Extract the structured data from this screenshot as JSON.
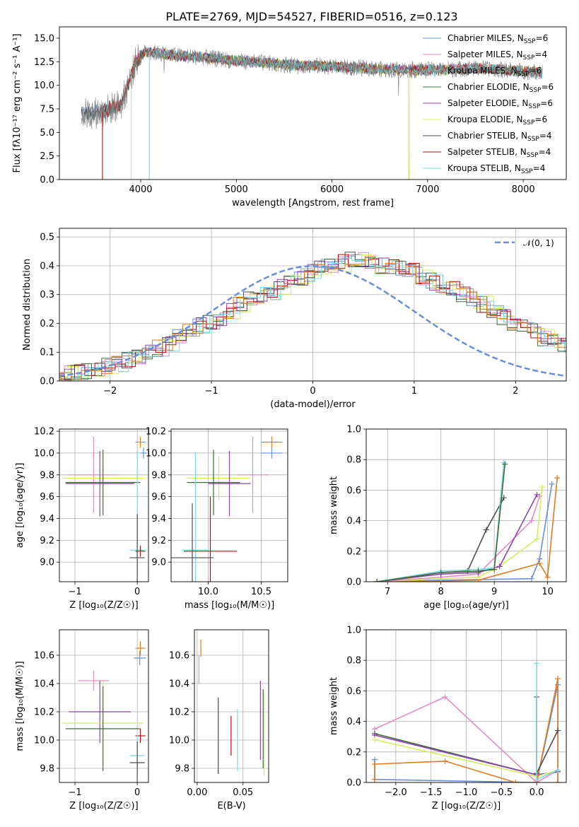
{
  "title": "PLATE=2769, MJD=54527, FIBERID=0516, z=0.123",
  "colors": {
    "chabrier_miles": "#6a8fd8",
    "salpeter_miles": "#e38cc3",
    "kroupa_miles": "#8fa39a",
    "chabrier_elodie": "#3d6b3d",
    "salpeter_elodie": "#8e44ad",
    "kroupa_elodie": "#d4ed5e",
    "chabrier_stelib": "#4d4d4d",
    "salpeter_stelib": "#b01010",
    "kroupa_stelib": "#7fd8e0",
    "orange": "#e07b25",
    "spectrum_data": "#808080"
  },
  "chart_data": [
    {
      "type": "line",
      "id": "spectrum",
      "title": "PLATE=2769, MJD=54527, FIBERID=0516, z=0.123",
      "xlabel": "wavelength [Angstrom, rest frame]",
      "ylabel": "Flux [f_λ10⁻¹⁷ erg cm⁻² s⁻¹ A⁻¹]",
      "xlim": [
        3150,
        8450
      ],
      "ylim": [
        0,
        16.2
      ],
      "xticks": [
        "4000",
        "5000",
        "6000",
        "7000",
        "8000"
      ],
      "yticks": [
        "0.0",
        "2.5",
        "5.0",
        "7.5",
        "10.0",
        "12.5",
        "15.0"
      ],
      "xtick_values": [
        4000,
        5000,
        6000,
        7000,
        8000
      ],
      "ytick_values": [
        0,
        2.5,
        5,
        7.5,
        10,
        12.5,
        15
      ],
      "legend": [
        "Chabrier MILES, N_SSP=6",
        "Salpeter MILES, N_SSP=4",
        "Kroupa MILES, N_SSP=6",
        "Chabrier ELODIE, N_SSP=6",
        "Salpeter ELODIE, N_SSP=6",
        "Kroupa ELODIE, N_SSP=6",
        "Chabrier STELIB, N_SSP=4",
        "Salpeter STELIB, N_SSP=4",
        "Kroupa STELIB, N_SSP=4"
      ],
      "legend_position": "top-right",
      "continuum_x": [
        3380,
        3600,
        3800,
        3950,
        4050,
        4300,
        4600,
        5000,
        5500,
        6000,
        6500,
        7000,
        7500,
        8000,
        8200
      ],
      "continuum_y": [
        6.9,
        7.2,
        8.0,
        12.5,
        13.6,
        13.2,
        13.0,
        12.6,
        12.2,
        12.0,
        11.7,
        11.6,
        11.8,
        11.5,
        11.4
      ],
      "model_cutoffs": [
        3600,
        3900,
        4090,
        6800
      ]
    },
    {
      "type": "line",
      "id": "residuals",
      "xlabel": "(data-model)/error",
      "ylabel": "Normed distribution",
      "xlim": [
        -2.5,
        2.5
      ],
      "ylim": [
        0,
        0.53
      ],
      "xticks": [
        "−2",
        "−1",
        "0",
        "1",
        "2"
      ],
      "yticks": [
        "0.0",
        "0.1",
        "0.2",
        "0.3",
        "0.4",
        "0.5"
      ],
      "xtick_values": [
        -2,
        -1,
        0,
        1,
        2
      ],
      "ytick_values": [
        0,
        0.1,
        0.2,
        0.3,
        0.4,
        0.5
      ],
      "legend": [
        "𝒩(0, 1)"
      ],
      "legend_position": "top-right",
      "bin_width": 0.1,
      "hist_base": [
        0.025,
        0.025,
        0.03,
        0.035,
        0.045,
        0.05,
        0.06,
        0.075,
        0.085,
        0.1,
        0.115,
        0.13,
        0.15,
        0.175,
        0.19,
        0.2,
        0.22,
        0.245,
        0.265,
        0.29,
        0.3,
        0.31,
        0.33,
        0.34,
        0.36,
        0.375,
        0.395,
        0.4,
        0.41,
        0.42,
        0.42,
        0.41,
        0.4,
        0.395,
        0.39,
        0.38,
        0.36,
        0.345,
        0.33,
        0.32,
        0.3,
        0.28,
        0.265,
        0.24,
        0.22,
        0.2,
        0.19,
        0.17,
        0.15,
        0.135,
        0.12,
        0.105,
        0.095,
        0.08,
        0.075,
        0.065,
        0.055,
        0.05,
        0.045,
        0.035,
        0.03,
        0.028
      ]
    },
    {
      "type": "scatter",
      "id": "age-vs-Z",
      "xlabel": "Z [log₁₀(Z/Z☉)]",
      "ylabel": "age  [log₁₀(age/yr)]",
      "xlim": [
        -1.25,
        0.18
      ],
      "ylim": [
        8.82,
        10.22
      ],
      "xticks": [
        "−1",
        "0"
      ],
      "yticks": [
        "9.0",
        "9.2",
        "9.4",
        "9.6",
        "9.8",
        "10.0",
        "10.2"
      ],
      "xtick_values": [
        -1,
        0
      ],
      "ytick_values": [
        9.0,
        9.2,
        9.4,
        9.6,
        9.8,
        10.0,
        10.2
      ],
      "points": [
        {
          "s": "chabrier_miles",
          "x": 0.1,
          "xe": 0.05,
          "y": 10.0,
          "ye": 0.05
        },
        {
          "s": "salpeter_miles",
          "x": -0.7,
          "xe": 0.4,
          "y": 9.8,
          "ye": 0.35
        },
        {
          "s": "kroupa_elodie",
          "x": -0.55,
          "xe": 0.65,
          "y": 9.77,
          "ye": 0.25
        },
        {
          "s": "chabrier_elodie",
          "x": -0.55,
          "xe": 0.6,
          "y": 9.73,
          "ye": 0.3
        },
        {
          "s": "salpeter_elodie",
          "x": -0.6,
          "xe": 0.55,
          "y": 9.72,
          "ye": 0.3
        },
        {
          "s": "orange",
          "x": 0.05,
          "xe": 0.08,
          "y": 10.1,
          "ye": 0.05
        },
        {
          "s": "kroupa_stelib",
          "x": 0.0,
          "xe": 0.12,
          "y": 9.11,
          "ye": 0.9
        },
        {
          "s": "salpeter_stelib",
          "x": 0.05,
          "xe": 0.08,
          "y": 9.1,
          "ye": 0.05
        },
        {
          "s": "chabrier_stelib",
          "x": 0.0,
          "xe": 0.12,
          "y": 9.04,
          "ye": 0.4
        }
      ]
    },
    {
      "type": "scatter",
      "id": "age-vs-mass",
      "xlabel": "mass [log₁₀(M/M☉)]",
      "ylabel": "",
      "xlim": [
        9.65,
        10.75
      ],
      "ylim": [
        8.82,
        10.22
      ],
      "xticks": [
        "10.0",
        "10.5"
      ],
      "yticks": [
        "9.0",
        "9.2",
        "9.4",
        "9.6",
        "9.8",
        "10.0",
        "10.2"
      ],
      "xtick_values": [
        10.0,
        10.5
      ],
      "ytick_values": [
        9.0,
        9.2,
        9.4,
        9.6,
        9.8,
        10.0,
        10.2
      ],
      "points": [
        {
          "s": "chabrier_miles",
          "x": 10.6,
          "xe": 0.1,
          "y": 10.0,
          "ye": 0.05
        },
        {
          "s": "salpeter_miles",
          "x": 10.42,
          "xe": 0.15,
          "y": 9.8,
          "ye": 0.35
        },
        {
          "s": "kroupa_elodie",
          "x": 10.1,
          "xe": 0.3,
          "y": 9.77,
          "ye": 0.2
        },
        {
          "s": "chabrier_elodie",
          "x": 10.05,
          "xe": 0.25,
          "y": 9.73,
          "ye": 0.3
        },
        {
          "s": "salpeter_elodie",
          "x": 10.2,
          "xe": 0.2,
          "y": 9.72,
          "ye": 0.3
        },
        {
          "s": "orange",
          "x": 10.6,
          "xe": 0.1,
          "y": 10.1,
          "ye": 0.05
        },
        {
          "s": "kroupa_stelib",
          "x": 9.88,
          "xe": 0.12,
          "y": 9.11,
          "ye": 0.9
        },
        {
          "s": "salpeter_stelib",
          "x": 10.02,
          "xe": 0.25,
          "y": 9.1,
          "ye": 0.5
        },
        {
          "s": "chabrier_stelib",
          "x": 9.85,
          "xe": 0.2,
          "y": 9.04,
          "ye": 0.5
        }
      ]
    },
    {
      "type": "line",
      "id": "massweight-vs-age",
      "xlabel": "age  [log₁₀(age/yr)]",
      "ylabel": "mass weight",
      "xlim": [
        6.6,
        10.35
      ],
      "ylim": [
        0,
        1.0
      ],
      "xticks": [
        "7",
        "8",
        "9",
        "10"
      ],
      "yticks": [
        "0.0",
        "0.2",
        "0.4",
        "0.6",
        "0.8",
        "1.0"
      ],
      "xtick_values": [
        7,
        8,
        9,
        10
      ],
      "ytick_values": [
        0,
        0.2,
        0.4,
        0.6,
        0.8,
        1.0
      ],
      "series": [
        {
          "s": "chabrier_miles",
          "x": [
            6.8,
            8.0,
            9.7,
            9.85,
            10.08
          ],
          "y": [
            0.0,
            0.01,
            0.02,
            0.15,
            0.64
          ]
        },
        {
          "s": "orange",
          "x": [
            6.8,
            8.0,
            8.7,
            9.85,
            10.0,
            10.18
          ],
          "y": [
            0.0,
            0.005,
            0.01,
            0.12,
            0.03,
            0.68
          ]
        },
        {
          "s": "kroupa_elodie",
          "x": [
            6.8,
            8.0,
            8.7,
            9.1,
            9.8,
            9.9
          ],
          "y": [
            0.0,
            0.02,
            0.03,
            0.1,
            0.28,
            0.62
          ]
        },
        {
          "s": "salpeter_miles",
          "x": [
            6.8,
            8.0,
            8.7,
            9.7,
            9.85
          ],
          "y": [
            0.0,
            0.03,
            0.05,
            0.4,
            0.56
          ]
        },
        {
          "s": "salpeter_elodie",
          "x": [
            6.8,
            8.0,
            8.7,
            9.1,
            9.8
          ],
          "y": [
            0.0,
            0.05,
            0.06,
            0.1,
            0.57
          ]
        },
        {
          "s": "chabrier_stelib",
          "x": [
            6.8,
            8.0,
            8.5,
            8.85,
            9.18
          ],
          "y": [
            0.0,
            0.06,
            0.07,
            0.34,
            0.55
          ]
        },
        {
          "s": "kroupa_stelib",
          "x": [
            6.8,
            8.0,
            8.7,
            9.0,
            9.18
          ],
          "y": [
            0.0,
            0.07,
            0.08,
            0.09,
            0.78
          ]
        },
        {
          "s": "chabrier_elodie",
          "x": [
            6.8,
            8.0,
            8.7,
            9.0,
            9.2
          ],
          "y": [
            0.0,
            0.06,
            0.07,
            0.08,
            0.77
          ]
        }
      ]
    },
    {
      "type": "scatter",
      "id": "mass-vs-Z",
      "xlabel": "Z [log₁₀(Z/Z☉)]",
      "ylabel": "mass [log₁₀(M/M☉)]",
      "xlim": [
        -1.25,
        0.18
      ],
      "ylim": [
        9.7,
        10.78
      ],
      "xticks": [
        "−1",
        "0"
      ],
      "yticks": [
        "9.8",
        "10.0",
        "10.2",
        "10.4",
        "10.6"
      ],
      "xtick_values": [
        -1,
        0
      ],
      "ytick_values": [
        9.8,
        10.0,
        10.2,
        10.4,
        10.6
      ],
      "points": [
        {
          "s": "orange",
          "x": 0.05,
          "xe": 0.08,
          "y": 10.65,
          "ye": 0.05
        },
        {
          "s": "chabrier_miles",
          "x": 0.04,
          "xe": 0.1,
          "y": 10.58,
          "ye": 0.05
        },
        {
          "s": "salpeter_miles",
          "x": -0.7,
          "xe": 0.25,
          "y": 10.42,
          "ye": 0.07
        },
        {
          "s": "salpeter_elodie",
          "x": -0.6,
          "xe": 0.5,
          "y": 10.2,
          "ye": 0.22
        },
        {
          "s": "kroupa_elodie",
          "x": -0.55,
          "xe": 0.65,
          "y": 10.12,
          "ye": 0.3
        },
        {
          "s": "chabrier_elodie",
          "x": -0.55,
          "xe": 0.6,
          "y": 10.08,
          "ye": 0.3
        },
        {
          "s": "salpeter_stelib",
          "x": 0.05,
          "xe": 0.08,
          "y": 10.03,
          "ye": 0.05
        },
        {
          "s": "kroupa_stelib",
          "x": 0.0,
          "xe": 0.12,
          "y": 9.89,
          "ye": 0.15
        },
        {
          "s": "chabrier_stelib",
          "x": 0.0,
          "xe": 0.12,
          "y": 9.84,
          "ye": 0.15
        }
      ]
    },
    {
      "type": "scatter",
      "id": "mass-vs-EBV",
      "xlabel": "E(B-V)",
      "ylabel": "",
      "xlim": [
        -0.003,
        0.078
      ],
      "ylim": [
        9.7,
        10.78
      ],
      "xticks": [
        "0.00",
        "0.05"
      ],
      "yticks": [
        "9.8",
        "10.0",
        "10.2",
        "10.4",
        "10.6"
      ],
      "xtick_values": [
        0.0,
        0.05
      ],
      "ytick_values": [
        9.8,
        10.0,
        10.2,
        10.4,
        10.6
      ],
      "points": [
        {
          "s": "orange",
          "x": 0.004,
          "xe": 0,
          "y": 10.65,
          "ye": 0.06
        },
        {
          "s": "salpeter_miles",
          "x": 0.002,
          "xe": 0,
          "y": 10.5,
          "ye": 0.1
        },
        {
          "s": "chabrier_stelib",
          "x": 0.023,
          "xe": 0,
          "y": 10.03,
          "ye": 0.27
        },
        {
          "s": "salpeter_stelib",
          "x": 0.037,
          "xe": 0,
          "y": 10.03,
          "ye": 0.14
        },
        {
          "s": "kroupa_stelib",
          "x": 0.044,
          "xe": 0,
          "y": 10.0,
          "ye": 0.22
        },
        {
          "s": "salpeter_elodie",
          "x": 0.069,
          "xe": 0,
          "y": 10.14,
          "ye": 0.28
        },
        {
          "s": "chabrier_elodie",
          "x": 0.072,
          "xe": 0,
          "y": 10.08,
          "ye": 0.28
        },
        {
          "s": "kroupa_elodie",
          "x": 0.073,
          "xe": 0,
          "y": 10.05,
          "ye": 0.3
        }
      ]
    },
    {
      "type": "line",
      "id": "massweight-vs-Z",
      "xlabel": "Z [log₁₀(Z/Z☉)]",
      "ylabel": "mass weight",
      "xlim": [
        -2.42,
        0.42
      ],
      "ylim": [
        0,
        1.0
      ],
      "xticks": [
        "−2.0",
        "−1.5",
        "−1.0",
        "−0.5",
        "0.0"
      ],
      "yticks": [
        "0.0",
        "0.2",
        "0.4",
        "0.6",
        "0.8",
        "1.0"
      ],
      "xtick_values": [
        -2.0,
        -1.5,
        -1.0,
        -0.5,
        0.0
      ],
      "ytick_values": [
        0,
        0.2,
        0.4,
        0.6,
        0.8,
        1.0
      ],
      "series": [
        {
          "s": "salpeter_miles",
          "x": [
            -2.3,
            -1.3,
            0.0,
            0.3
          ],
          "y": [
            0.35,
            0.56,
            0.0,
            0.08
          ]
        },
        {
          "s": "chabrier_elodie",
          "x": [
            -2.3,
            0.0,
            0.3
          ],
          "y": [
            0.32,
            0.05,
            0.07
          ]
        },
        {
          "s": "salpeter_elodie",
          "x": [
            -2.3,
            0.0,
            0.3
          ],
          "y": [
            0.31,
            0.05,
            0.07
          ]
        },
        {
          "s": "kroupa_elodie",
          "x": [
            -2.3,
            0.0,
            0.3
          ],
          "y": [
            0.28,
            0.04,
            0.08
          ]
        },
        {
          "s": "chabrier_miles",
          "x": [
            -2.3,
            -2.3,
            0.0,
            0.3,
            0.3
          ],
          "y": [
            0.15,
            0.02,
            0.0,
            0.64,
            0.0
          ]
        },
        {
          "s": "orange",
          "x": [
            -2.3,
            -2.3,
            -1.3,
            -0.3,
            0.0,
            0.3,
            0.3
          ],
          "y": [
            0.02,
            0.12,
            0.14,
            0.0,
            0.0,
            0.68,
            0.0
          ]
        },
        {
          "s": "chabrier_stelib",
          "x": [
            0.0,
            0.0,
            0.3
          ],
          "y": [
            0.56,
            0.06,
            0.34
          ]
        },
        {
          "s": "kroupa_stelib",
          "x": [
            0.0,
            0.0,
            0.3
          ],
          "y": [
            0.78,
            0.02,
            0.08
          ]
        }
      ]
    }
  ]
}
